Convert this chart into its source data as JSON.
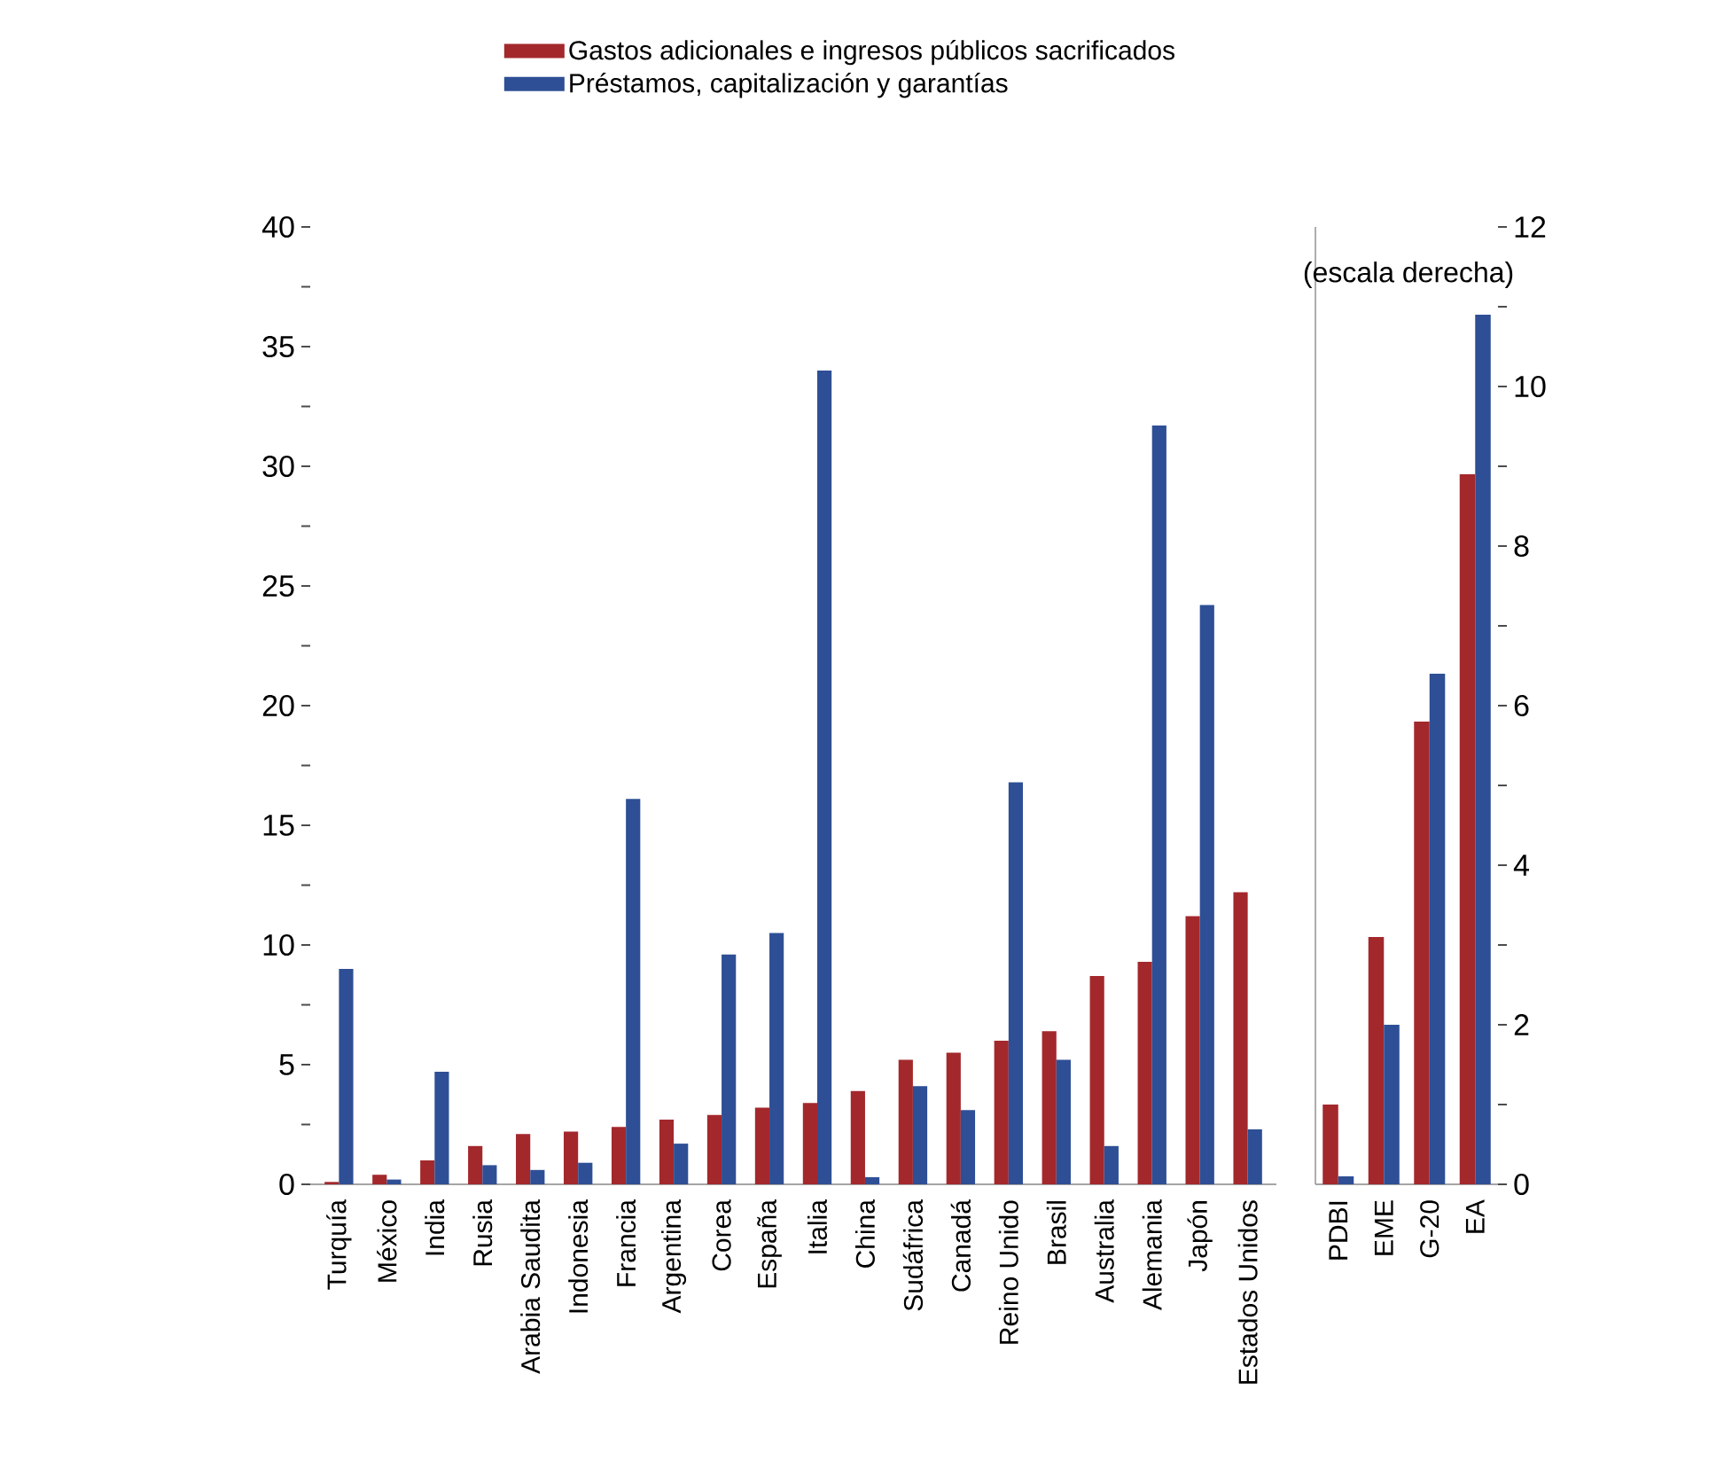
{
  "chart_data": [
    {
      "type": "bar",
      "categories": [
        "Turquía",
        "México",
        "India",
        "Rusia",
        "Arabia Saudita",
        "Indonesia",
        "Francia",
        "Argentina",
        "Corea",
        "España",
        "Italia",
        "China",
        "Sudáfrica",
        "Canadá",
        "Reino Unido",
        "Brasil",
        "Australia",
        "Alemania",
        "Japón",
        "Estados Unidos"
      ],
      "series": [
        {
          "name": "Gastos adicionales e ingresos públicos sacrificados",
          "color": "#a3282c",
          "values": [
            0.1,
            0.4,
            1.0,
            1.6,
            2.1,
            2.2,
            2.4,
            2.7,
            2.9,
            3.2,
            3.4,
            3.9,
            5.2,
            5.5,
            6.0,
            6.4,
            8.7,
            9.3,
            11.2,
            12.2
          ]
        },
        {
          "name": "Préstamos, capitalización y garantías",
          "color": "#2e4f95",
          "values": [
            9.0,
            0.2,
            4.7,
            0.8,
            0.6,
            0.9,
            16.1,
            1.7,
            9.6,
            10.5,
            34.0,
            0.3,
            4.1,
            3.1,
            16.8,
            5.2,
            1.6,
            31.7,
            24.2,
            2.3
          ]
        }
      ],
      "ylim": [
        0,
        40
      ],
      "yticks": [
        0,
        {
          "value": 2.5,
          "label": null
        },
        5,
        {
          "value": 7.5,
          "label": null
        },
        10,
        {
          "value": 12.5,
          "label": null
        },
        15,
        {
          "value": 17.5,
          "label": null
        },
        20,
        {
          "value": 22.5,
          "label": null
        },
        25,
        {
          "value": 27.5,
          "label": null
        },
        30,
        {
          "value": 32.5,
          "label": null
        },
        35,
        {
          "value": 37.5,
          "label": null
        },
        40
      ],
      "legend": "top"
    },
    {
      "type": "bar",
      "categories": [
        "PDBI",
        "EME",
        "G-20",
        "EA"
      ],
      "series": [
        {
          "color": "#a3282c",
          "values": [
            1.0,
            3.1,
            5.8,
            8.9
          ]
        },
        {
          "color": "#2e4f95",
          "values": [
            0.1,
            2.0,
            6.4,
            10.9
          ]
        }
      ],
      "ylim": [
        0,
        12
      ],
      "yticks": [
        0,
        {
          "value": 1,
          "label": null
        },
        2,
        {
          "value": 3,
          "label": null
        },
        4,
        {
          "value": 5,
          "label": null
        },
        6,
        {
          "value": 7,
          "label": null
        },
        8,
        {
          "value": 9,
          "label": null
        },
        10,
        {
          "value": 11,
          "label": null
        },
        12
      ],
      "annotations": [
        "(escala derecha)"
      ]
    }
  ]
}
